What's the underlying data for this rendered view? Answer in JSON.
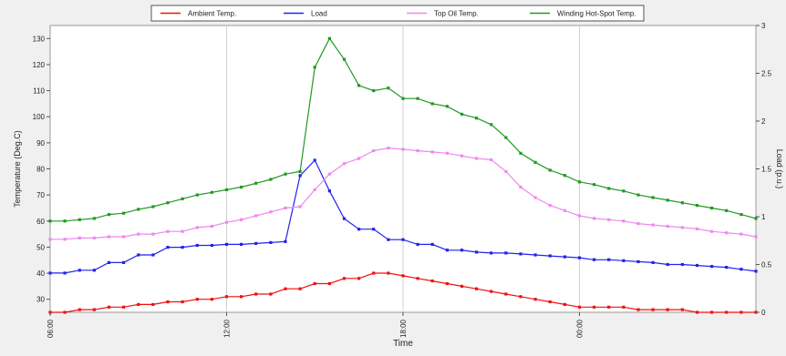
{
  "chart_data": {
    "type": "line",
    "xlabel": "Time",
    "ylabel": "Temperature (Deg.C)",
    "y2label": "Load (p.u.)",
    "xlim": [
      6,
      30
    ],
    "ylim": [
      25,
      135
    ],
    "y2lim": [
      0,
      3
    ],
    "x_ticks": [
      6,
      12,
      18,
      24
    ],
    "x_tick_labels": [
      "06:00",
      "12:00",
      "18:00",
      "00:00"
    ],
    "y_ticks": [
      30,
      40,
      50,
      60,
      70,
      80,
      90,
      100,
      110,
      120,
      130
    ],
    "y2_ticks": [
      0,
      0.5,
      1,
      1.5,
      2,
      2.5,
      3
    ],
    "y2_tick_labels": [
      "0",
      "0.5",
      "1",
      "1.5",
      "2",
      "2.5",
      "3"
    ],
    "grid": true,
    "legend_position": "top",
    "x": [
      6,
      6.5,
      7,
      7.5,
      8,
      8.5,
      9,
      9.5,
      10,
      10.5,
      11,
      11.5,
      12,
      12.5,
      13,
      13.5,
      14,
      14.5,
      15,
      15.5,
      16,
      16.5,
      17,
      17.5,
      18,
      18.5,
      19,
      19.5,
      20,
      20.5,
      21,
      21.5,
      22,
      22.5,
      23,
      23.5,
      24,
      24.5,
      25,
      25.5,
      26,
      26.5,
      27,
      27.5,
      28,
      28.5,
      29,
      29.5,
      30
    ],
    "series": [
      {
        "name": "Ambient Temp.",
        "color": "#ee1111",
        "axis": "left",
        "values": [
          25,
          25,
          26,
          26,
          27,
          27,
          28,
          28,
          29,
          29,
          30,
          30,
          31,
          31,
          32,
          32,
          34,
          34,
          36,
          36,
          38,
          38,
          40,
          40,
          39,
          38,
          37,
          36,
          35,
          34,
          33,
          32,
          31,
          30,
          29,
          28,
          27,
          27,
          27,
          27,
          26,
          26,
          26,
          26,
          25,
          25,
          25,
          25,
          25
        ]
      },
      {
        "name": "Load",
        "color": "#2222ee",
        "axis": "right",
        "values": [
          0.41,
          0.41,
          0.44,
          0.44,
          0.52,
          0.52,
          0.6,
          0.6,
          0.68,
          0.68,
          0.7,
          0.7,
          0.71,
          0.71,
          0.72,
          0.73,
          0.74,
          1.43,
          1.59,
          1.27,
          0.98,
          0.87,
          0.87,
          0.76,
          0.76,
          0.71,
          0.71,
          0.65,
          0.65,
          0.63,
          0.62,
          0.62,
          0.61,
          0.6,
          0.59,
          0.58,
          0.57,
          0.55,
          0.55,
          0.54,
          0.53,
          0.52,
          0.5,
          0.5,
          0.49,
          0.48,
          0.47,
          0.45,
          0.43
        ]
      },
      {
        "name": "Top Oil Temp.",
        "color": "#ee88ee",
        "axis": "left",
        "values": [
          53,
          53,
          53.5,
          53.5,
          54,
          54,
          55,
          55,
          56,
          56,
          57.5,
          58,
          59.5,
          60.5,
          62,
          63.5,
          65,
          65.5,
          72,
          78,
          82,
          84,
          87,
          88,
          87.5,
          87,
          86.5,
          86,
          85,
          84,
          83.5,
          79,
          73,
          69,
          66,
          64,
          62,
          61,
          60.5,
          60,
          59,
          58.5,
          58,
          57.5,
          57,
          56,
          55.5,
          55,
          54
        ]
      },
      {
        "name": "Winding Hot-Spot Temp.",
        "color": "#229922",
        "axis": "left",
        "values": [
          60,
          60,
          60.5,
          61,
          62.5,
          63,
          64.5,
          65.5,
          67,
          68.5,
          70,
          71,
          72,
          73,
          74.5,
          76,
          78,
          79,
          119,
          130,
          122,
          112,
          110,
          111,
          107,
          107,
          105,
          104,
          101,
          99.5,
          97,
          92,
          86,
          82.5,
          79.5,
          77.5,
          75,
          74,
          72.5,
          71.5,
          70,
          69,
          68,
          67,
          66,
          65,
          64,
          62.5,
          61
        ]
      }
    ]
  }
}
